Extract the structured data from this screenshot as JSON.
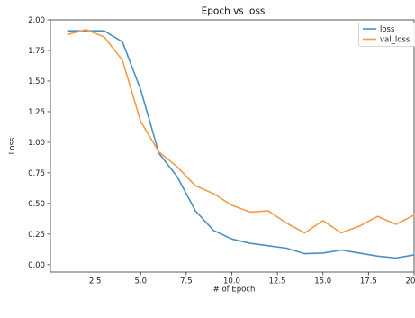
{
  "chart_data": {
    "type": "line",
    "title": "Epoch vs loss",
    "xlabel": "# of Epoch",
    "ylabel": "Loss",
    "xlim": [
      0.05,
      20.0
    ],
    "ylim": [
      -0.06,
      2.0
    ],
    "xticks": [
      "2.5",
      "5.0",
      "7.5",
      "10.0",
      "12.5",
      "15.0",
      "17.5",
      "20.0"
    ],
    "yticks": [
      "0.00",
      "0.25",
      "0.50",
      "0.75",
      "1.00",
      "1.25",
      "1.50",
      "1.75",
      "2.00"
    ],
    "legend_position": "top-right",
    "grid": false,
    "x": [
      1,
      2,
      3,
      4,
      5,
      6,
      7,
      8,
      9,
      10,
      11,
      12,
      13,
      14,
      15,
      16,
      17,
      18,
      19,
      20
    ],
    "series": [
      {
        "name": "loss",
        "color": "#4f8fc0",
        "values": [
          1.91,
          1.91,
          1.91,
          1.82,
          1.43,
          0.91,
          0.72,
          0.44,
          0.28,
          0.21,
          0.175,
          0.155,
          0.135,
          0.09,
          0.095,
          0.12,
          0.095,
          0.07,
          0.055,
          0.08
        ]
      },
      {
        "name": "val_loss",
        "color": "#f39c4a",
        "values": [
          1.88,
          1.92,
          1.86,
          1.67,
          1.17,
          0.92,
          0.8,
          0.645,
          0.58,
          0.485,
          0.43,
          0.44,
          0.34,
          0.26,
          0.36,
          0.26,
          0.315,
          0.395,
          0.33,
          0.405
        ]
      }
    ]
  }
}
